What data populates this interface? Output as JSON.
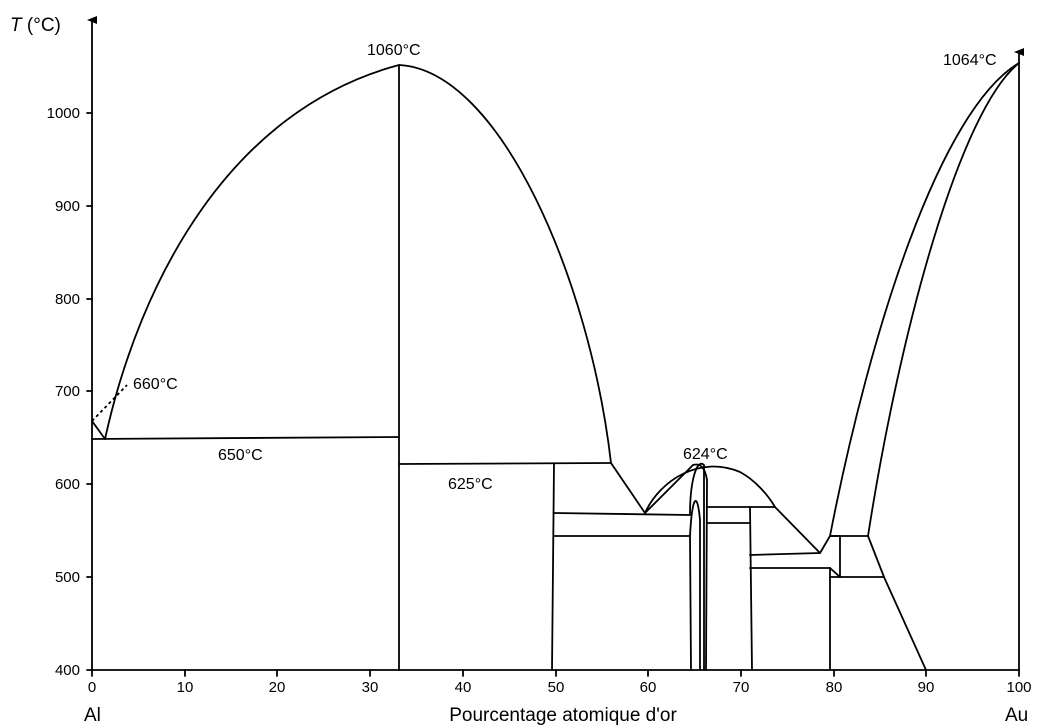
{
  "axes": {
    "y_title_italic": "T",
    "y_title_unit": " (°C)",
    "x_title": "Pourcentage atomique d'or",
    "left_element": "Al",
    "right_element": "Au",
    "x_ticks": [
      0,
      10,
      20,
      30,
      40,
      50,
      60,
      70,
      80,
      90,
      100
    ],
    "y_ticks": [
      400,
      500,
      600,
      700,
      800,
      900,
      1000
    ]
  },
  "annotations": {
    "t1060": "1060°C",
    "t1064": "1064°C",
    "t660": "660°C",
    "t650": "650°C",
    "t625": "625°C",
    "t624": "624°C"
  },
  "chart_data": {
    "type": "diagram",
    "xlabel": "Pourcentage atomique d'or",
    "ylabel": "T (°C)",
    "xlim": [
      0,
      100
    ],
    "ylim": [
      400,
      1064
    ],
    "special_points": [
      {
        "label": "1060°C",
        "x": 33.3,
        "y": 1060
      },
      {
        "label": "1064°C",
        "x": 100,
        "y": 1064
      },
      {
        "label": "660°C",
        "x": 0,
        "y": 660
      },
      {
        "label": "650°C",
        "x": 1.3,
        "y": 650
      },
      {
        "label": "625°C",
        "x": 33.3,
        "y": 625
      },
      {
        "label": "624°C",
        "x": 65.8,
        "y": 624
      }
    ],
    "isotherms_c": [
      650,
      625,
      624,
      568,
      545,
      575,
      558,
      525,
      510,
      545,
      500
    ]
  }
}
